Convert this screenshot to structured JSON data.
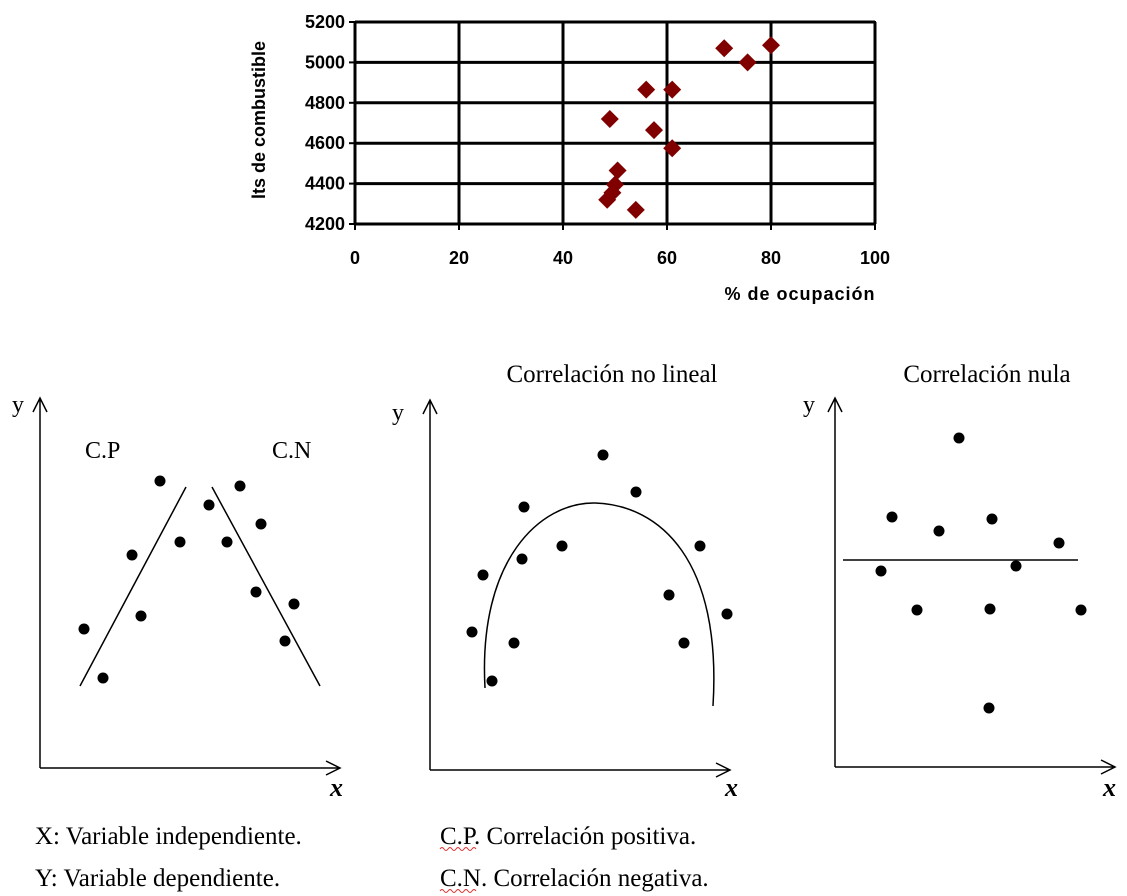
{
  "chart_data": {
    "type": "scatter",
    "x_label": "% de ocupación",
    "y_label": "lts de combustible",
    "x": [
      49,
      56,
      61,
      71,
      75.5,
      80,
      57.5,
      61,
      50.5,
      50,
      49.5,
      48.5,
      54
    ],
    "values": [
      4720,
      4865,
      4865,
      5070,
      5000,
      5085,
      4665,
      4575,
      4465,
      4395,
      4355,
      4320,
      4270
    ],
    "color": "#800000",
    "xlim": [
      0,
      100
    ],
    "xticks": [
      0,
      20,
      40,
      60,
      80,
      100
    ],
    "ylim": [
      4200,
      5200
    ],
    "yticks": [
      4200,
      4400,
      4600,
      4800,
      5000,
      5200
    ],
    "grid": true
  },
  "diagrams": [
    {
      "y_label": "y",
      "x_label": "x",
      "labels": [
        "C.P",
        "C.N"
      ]
    },
    {
      "title": "Correlación no lineal",
      "y_label": "y",
      "x_label": "x"
    },
    {
      "title": "Correlación nula",
      "y_label": "y",
      "x_label": "x"
    }
  ],
  "notes": [
    [
      "X: Variable independiente.",
      "C.P. Correlación positiva."
    ],
    [
      "Y: Variable dependiente.",
      "C.N. Correlación negativa."
    ]
  ]
}
